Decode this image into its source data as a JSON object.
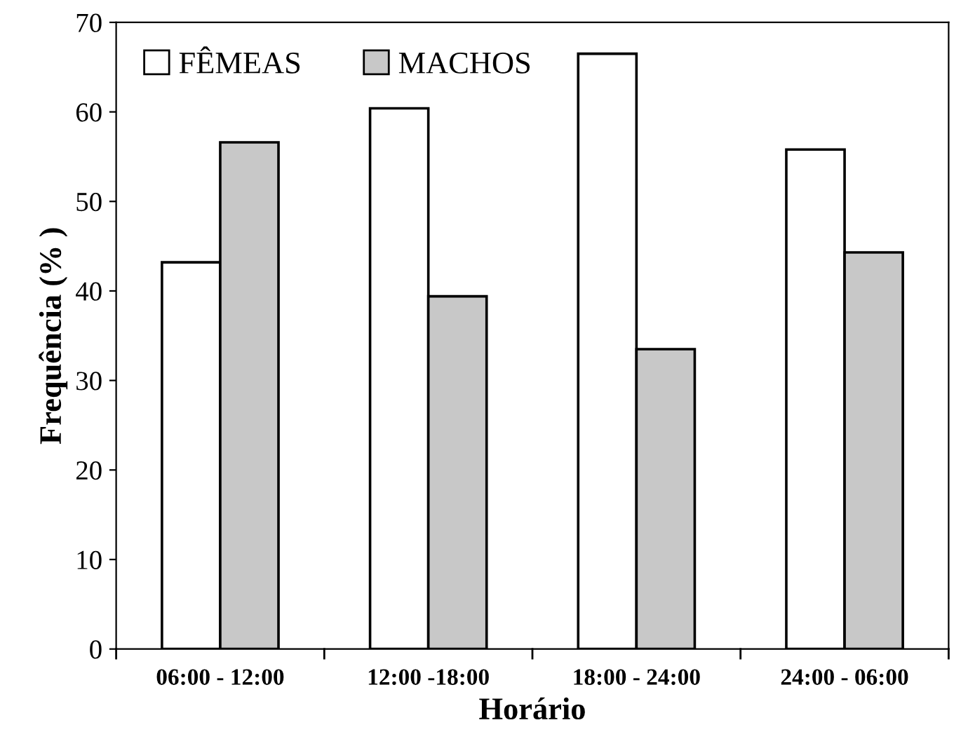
{
  "chart_data": {
    "type": "bar",
    "xlabel": "Horário",
    "ylabel": "Frequência (% )",
    "categories": [
      "06:00 - 12:00",
      "12:00 -18:00",
      "18:00 - 24:00",
      "24:00 - 06:00"
    ],
    "series": [
      {
        "name": "FÊMEAS",
        "color": "#ffffff",
        "values": [
          43.2,
          60.4,
          66.5,
          55.8
        ]
      },
      {
        "name": "MACHOS",
        "color": "#c8c8c8",
        "values": [
          56.6,
          39.4,
          33.5,
          44.3
        ]
      }
    ],
    "ylim": [
      0,
      70
    ],
    "yticks": [
      0,
      10,
      20,
      30,
      40,
      50,
      60,
      70
    ],
    "grid": false,
    "legend": "top left"
  }
}
